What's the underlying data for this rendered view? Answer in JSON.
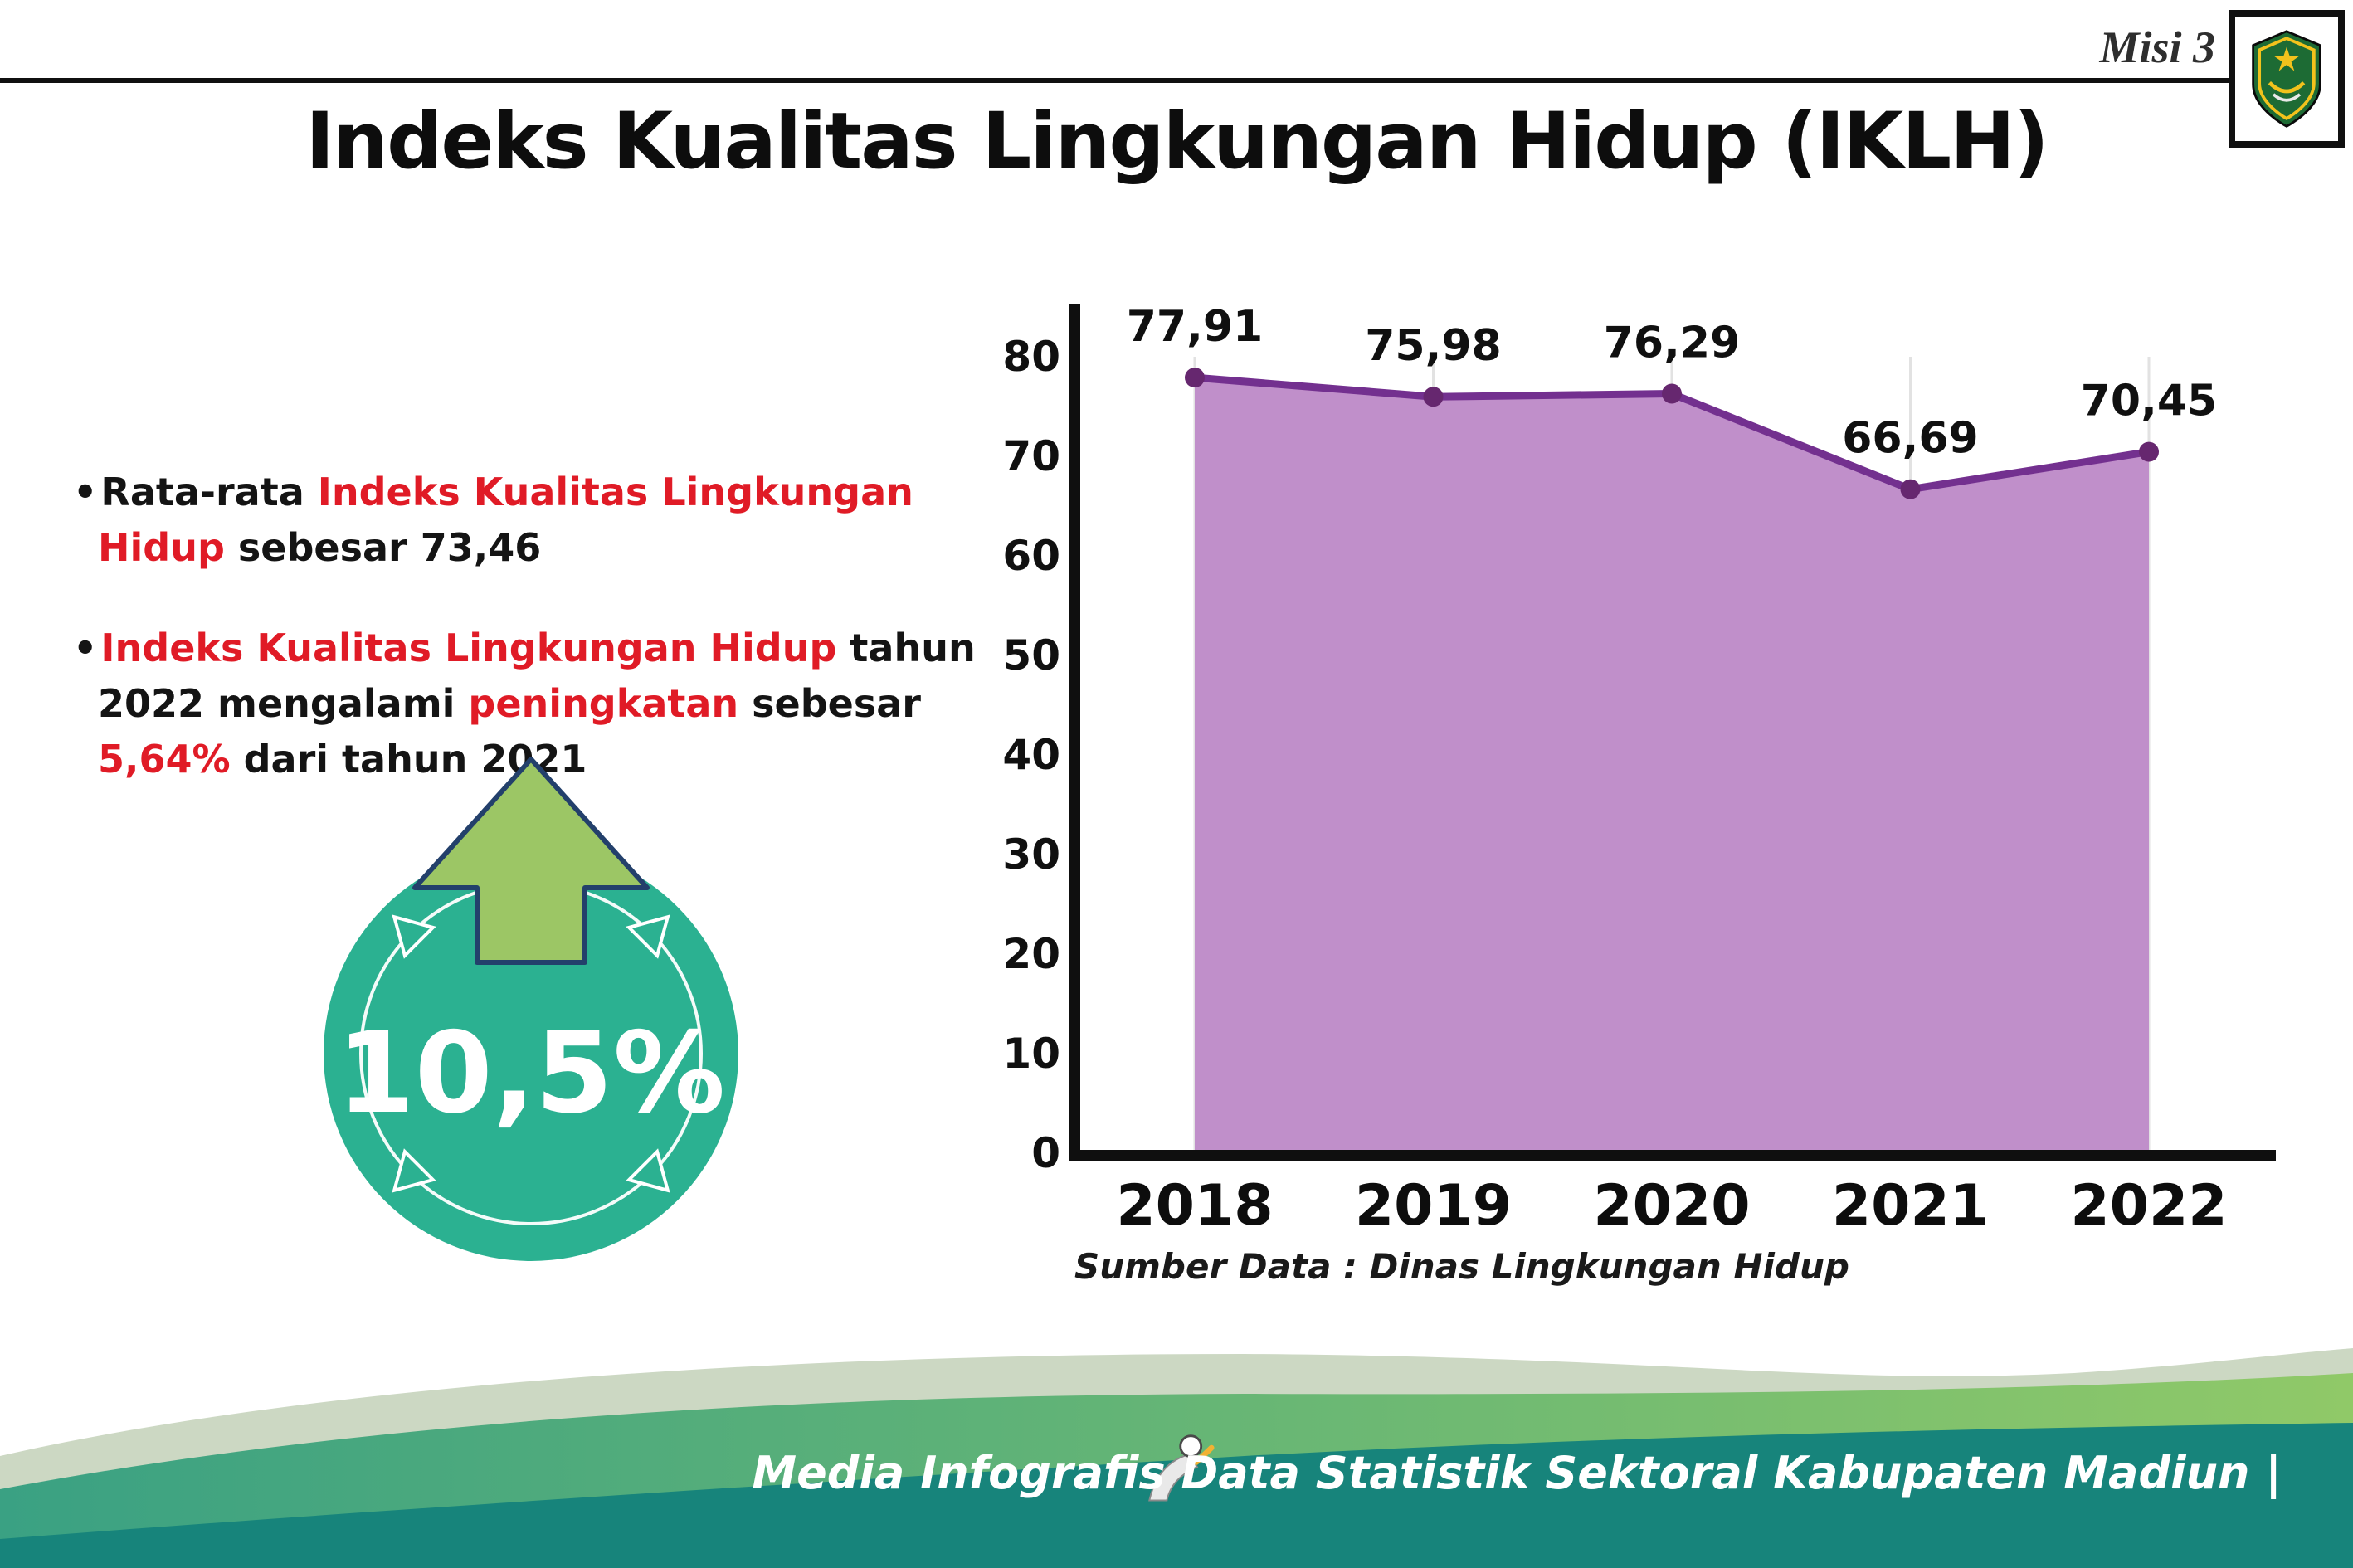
{
  "header": {
    "misi": "Misi 3",
    "logo": "kabupaten-madiun-crest"
  },
  "title": "Indeks Kualitas Lingkungan Hidup (IKLH)",
  "bullets": [
    {
      "segments": [
        {
          "text": "Rata-rata ",
          "style": "normal"
        },
        {
          "text": "Indeks Kualitas Lingkungan Hidup",
          "style": "red"
        },
        {
          "text": " sebesar 73,46",
          "style": "normal"
        }
      ]
    },
    {
      "segments": [
        {
          "text": "Indeks Kualitas Lingkungan Hidup",
          "style": "red"
        },
        {
          "text": " tahun 2022 mengalami ",
          "style": "normal"
        },
        {
          "text": "peningkatan",
          "style": "red"
        },
        {
          "text": " sebesar ",
          "style": "normal"
        },
        {
          "text": "5,64%",
          "style": "red"
        },
        {
          "text": " dari tahun 2021",
          "style": "normal"
        }
      ]
    }
  ],
  "badge": {
    "value": "10,5%",
    "icon": "up-arrow-icon",
    "circle_color": "#2bb191",
    "arrow_color": "#9cc665"
  },
  "chart_data": {
    "type": "area",
    "title": "",
    "categories": [
      "2018",
      "2019",
      "2020",
      "2021",
      "2022"
    ],
    "values": [
      77.91,
      75.98,
      76.29,
      66.69,
      70.45
    ],
    "value_labels": [
      "77,91",
      "75,98",
      "76,29",
      "66,69",
      "70,45"
    ],
    "ylim": [
      0,
      80
    ],
    "yticks": [
      0,
      10,
      20,
      30,
      40,
      50,
      60,
      70,
      80
    ],
    "grid": "vertical-light",
    "legend": "none",
    "colors": {
      "fill": "#c08fca",
      "line": "#73308f",
      "point": "#66276f",
      "axis": "#0f0f0f"
    },
    "source": "Sumber Data : Dinas Lingkungan Hidup"
  },
  "footer": {
    "text": "Media Infografis Data Statistik Sektoral Kabupaten Madiun |",
    "mascot": "writer-mascot-icon"
  }
}
